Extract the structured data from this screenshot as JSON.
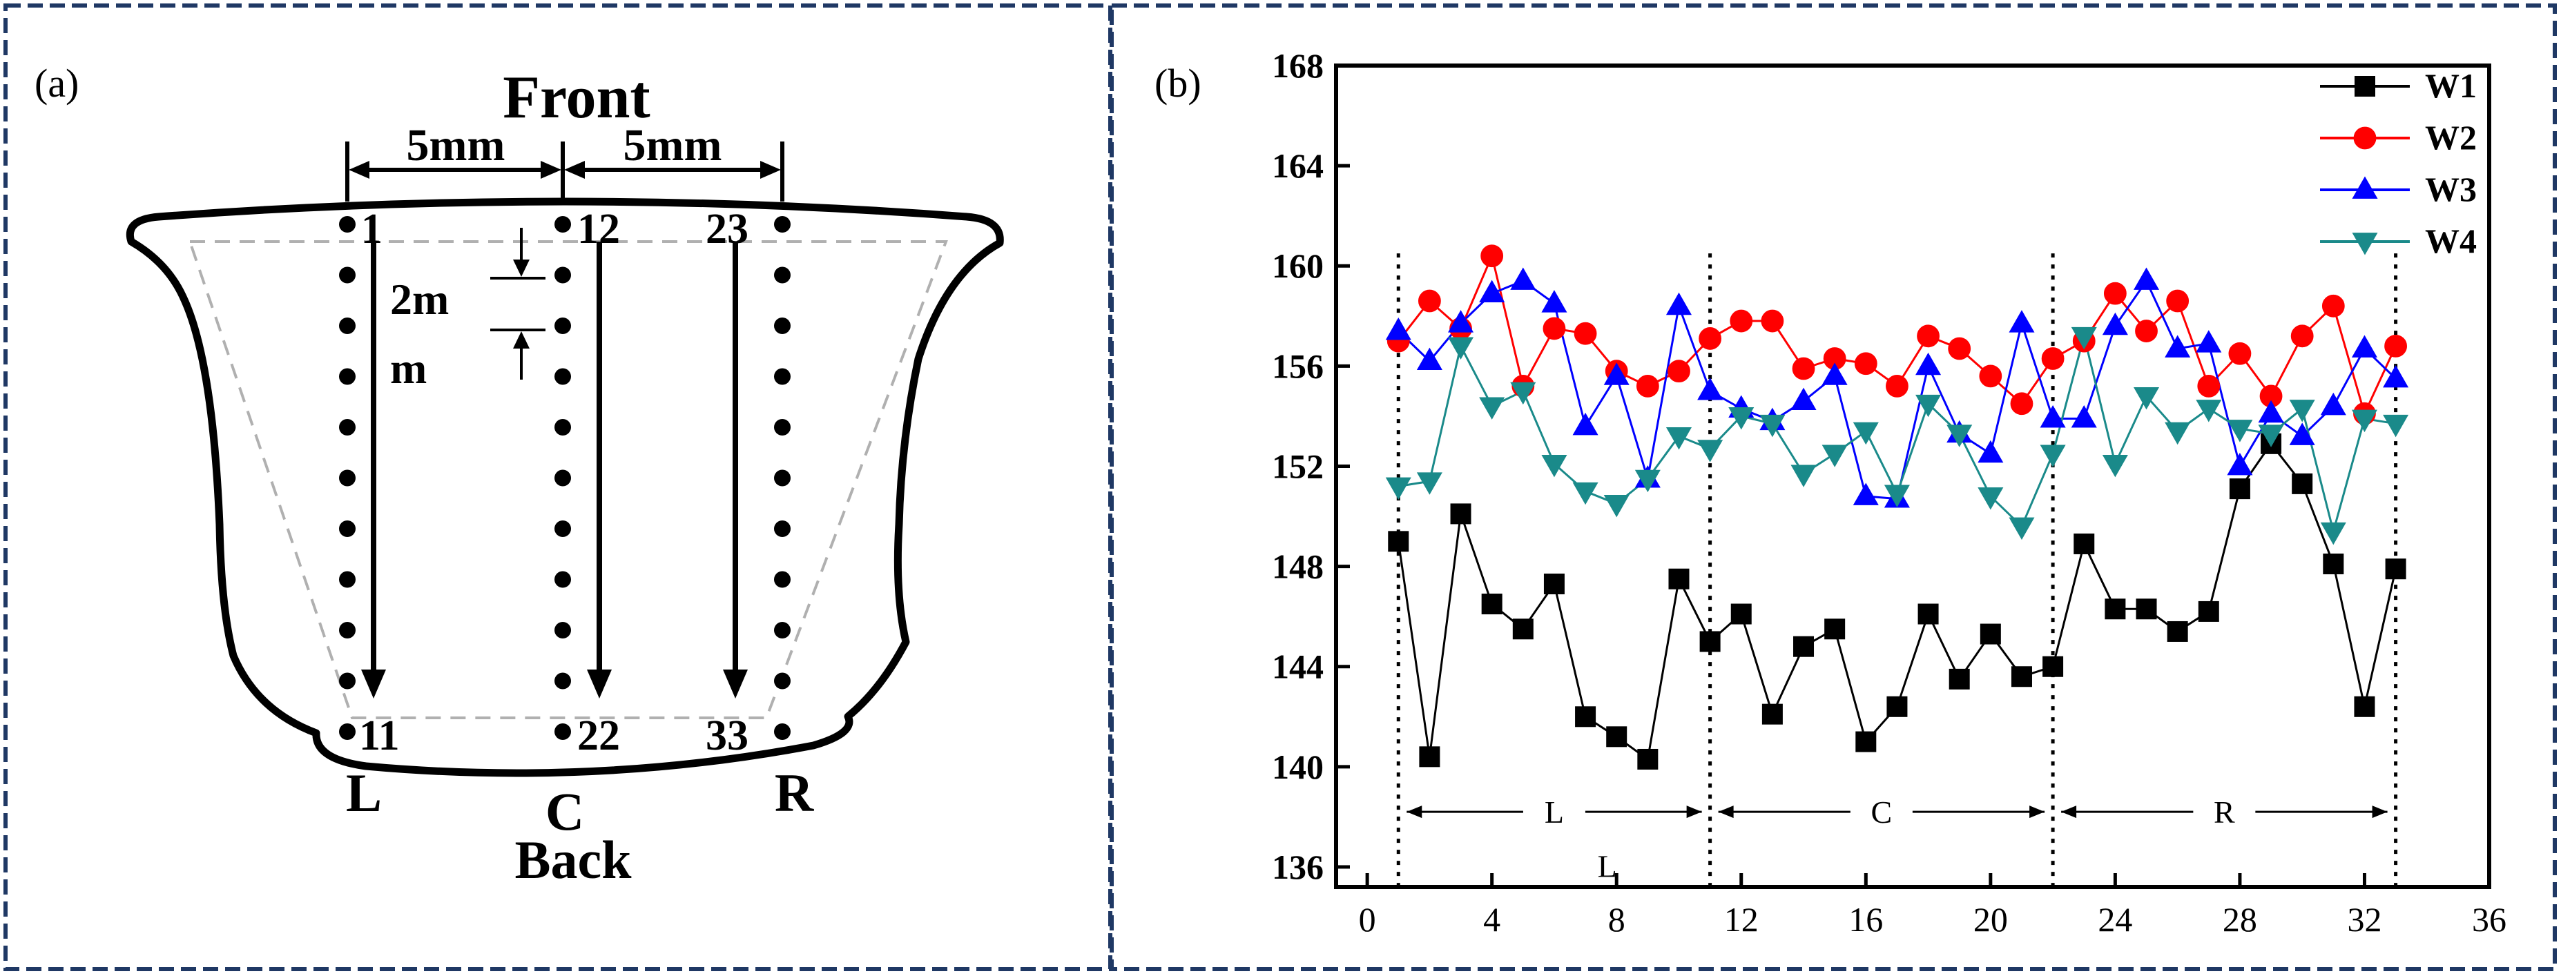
{
  "panel_a": {
    "label": "(a)",
    "front": "Front",
    "back": "Back",
    "dim_left": "5mm",
    "dim_right": "5mm",
    "pitch_1": "2m",
    "pitch_2": "m",
    "line_l": "L",
    "line_c": "C",
    "line_r": "R",
    "pt_1": "1",
    "pt_11": "11",
    "pt_12": "12",
    "pt_22": "22",
    "pt_23": "23",
    "pt_33": "33"
  },
  "panel_b": {
    "label": "(b)",
    "region_l": "L",
    "region_c": "C",
    "region_r": "R",
    "stray_l": "L"
  },
  "chart_data": {
    "type": "line",
    "title": "",
    "xlabel": "",
    "ylabel": "",
    "xlim": [
      -1,
      36
    ],
    "ylim": [
      135.2,
      168
    ],
    "xticks": [
      0,
      4,
      8,
      12,
      16,
      20,
      24,
      28,
      32,
      36
    ],
    "xtick_labels": [
      "0",
      "4",
      "8",
      "12",
      "16",
      "20",
      "24",
      "28",
      "32",
      "36"
    ],
    "yticks": [
      136,
      140,
      144,
      148,
      152,
      156,
      160,
      164,
      168
    ],
    "ytick_labels": [
      "136",
      "140",
      "144",
      "148",
      "152",
      "156",
      "160",
      "164",
      "168"
    ],
    "legend_position": "top-right",
    "region_dividers_x": [
      1,
      11,
      22,
      33
    ],
    "x": [
      1,
      2,
      3,
      4,
      5,
      6,
      7,
      8,
      9,
      10,
      11,
      12,
      13,
      14,
      15,
      16,
      17,
      18,
      19,
      20,
      21,
      22,
      23,
      24,
      25,
      26,
      27,
      28,
      29,
      30,
      31,
      32,
      33
    ],
    "series": [
      {
        "name": "W1",
        "color": "#000000",
        "marker": "square",
        "fill": "#000000",
        "values": [
          149.0,
          140.4,
          150.1,
          146.5,
          145.5,
          147.3,
          142.0,
          141.2,
          140.3,
          147.5,
          145.0,
          146.1,
          142.1,
          144.8,
          145.5,
          141.0,
          142.4,
          146.1,
          143.5,
          145.3,
          143.6,
          144.0,
          148.9,
          146.3,
          146.3,
          145.4,
          146.2,
          151.1,
          152.9,
          151.3,
          148.1,
          142.4,
          147.9
        ]
      },
      {
        "name": "W2",
        "color": "#ff0000",
        "marker": "circle",
        "fill": "#ff0000",
        "values": [
          157.0,
          158.6,
          157.5,
          160.4,
          155.2,
          157.5,
          157.3,
          155.8,
          155.2,
          155.8,
          157.1,
          157.8,
          157.8,
          155.9,
          156.3,
          156.1,
          155.2,
          157.2,
          156.7,
          155.6,
          154.5,
          156.3,
          157.0,
          158.9,
          157.4,
          158.6,
          155.2,
          156.5,
          154.8,
          157.2,
          158.4,
          154.1,
          156.8
        ]
      },
      {
        "name": "W3",
        "color": "#0000ff",
        "marker": "triangle-up",
        "fill": "#0000ff",
        "values": [
          157.4,
          156.2,
          157.7,
          158.9,
          159.4,
          158.5,
          153.6,
          155.6,
          151.5,
          158.4,
          155.0,
          154.3,
          153.8,
          154.6,
          155.6,
          150.8,
          150.7,
          156.0,
          153.3,
          152.5,
          157.7,
          153.9,
          153.9,
          157.6,
          159.4,
          156.7,
          156.9,
          152.0,
          154.1,
          153.2,
          154.4,
          156.7,
          155.5
        ]
      },
      {
        "name": "W4",
        "color": "#1a8a8a",
        "marker": "triangle-down",
        "fill": "#1a8a8a",
        "values": [
          151.2,
          151.4,
          156.8,
          154.4,
          155.0,
          152.1,
          151.0,
          150.5,
          151.5,
          153.2,
          152.7,
          154.0,
          153.7,
          151.7,
          152.5,
          153.4,
          150.9,
          154.5,
          153.3,
          150.8,
          149.6,
          152.5,
          157.2,
          152.1,
          154.8,
          153.4,
          154.3,
          153.5,
          153.3,
          154.3,
          149.4,
          153.9,
          153.7
        ]
      }
    ]
  }
}
